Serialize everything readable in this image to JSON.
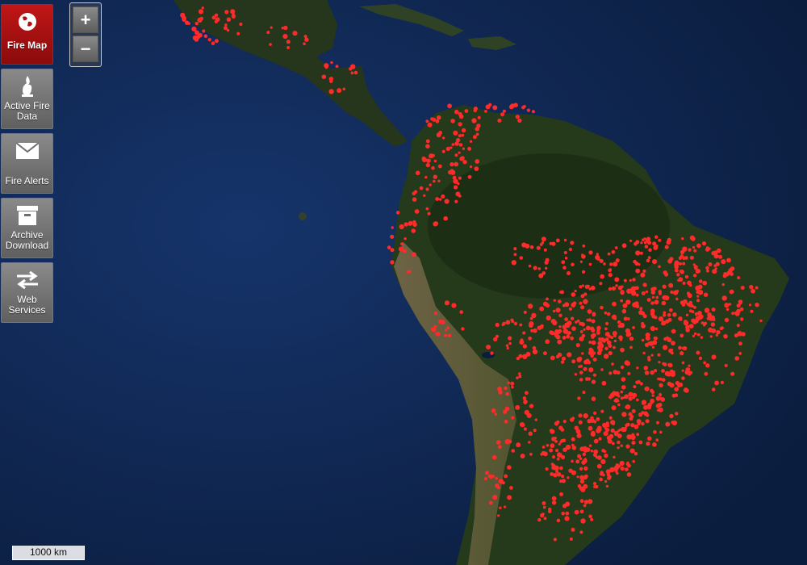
{
  "sidebar": {
    "items": [
      {
        "label": "Fire Map",
        "icon": "globe-icon",
        "active": true
      },
      {
        "label": "Active Fire Data",
        "icon": "flame-icon",
        "active": false
      },
      {
        "label": "Fire Alerts",
        "icon": "envelope-icon",
        "active": false
      },
      {
        "label": "Archive Download",
        "icon": "archive-box-icon",
        "active": false
      },
      {
        "label": "Web Services",
        "icon": "swap-arrows-icon",
        "active": false
      }
    ]
  },
  "zoom": {
    "in_label": "+",
    "out_label": "−"
  },
  "scale": {
    "label": "1000 km"
  },
  "colors": {
    "ocean": "#0d2247",
    "land": "#2b3a1f",
    "fire": "#ff2a2a",
    "active_button": "#b01010",
    "button": "#6e6e6e"
  }
}
